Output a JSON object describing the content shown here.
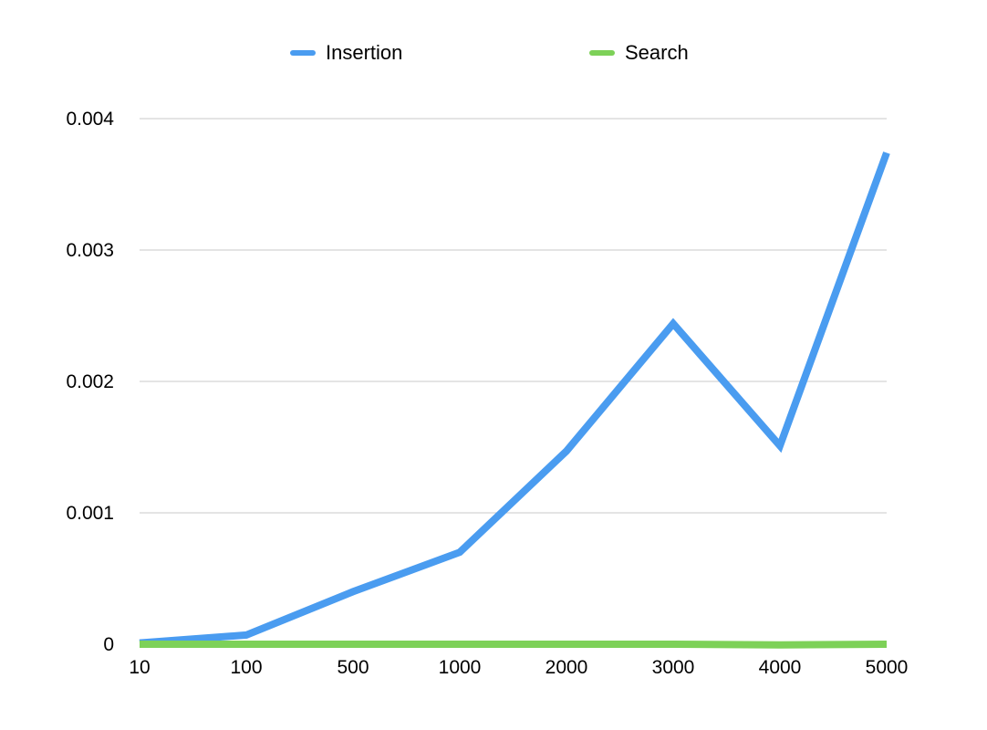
{
  "chart_data": {
    "type": "line",
    "title": "",
    "xlabel": "",
    "ylabel": "",
    "categories": [
      "10",
      "100",
      "500",
      "1000",
      "2000",
      "3000",
      "4000",
      "5000"
    ],
    "series": [
      {
        "name": "Insertion",
        "color": "#4a9cf0",
        "values": [
          1e-05,
          7e-05,
          0.0004,
          0.0007,
          0.00147,
          0.00244,
          0.00151,
          0.00374
        ]
      },
      {
        "name": "Search",
        "color": "#7dd158",
        "values": [
          0.0,
          0.0,
          0.0,
          0.0,
          0.0,
          0.0,
          -5e-06,
          0.0
        ]
      }
    ],
    "ylim": [
      0,
      0.004
    ],
    "yticks": [
      "0",
      "0.001",
      "0.002",
      "0.003",
      "0.004"
    ],
    "grid": true,
    "legend_position": "top"
  }
}
